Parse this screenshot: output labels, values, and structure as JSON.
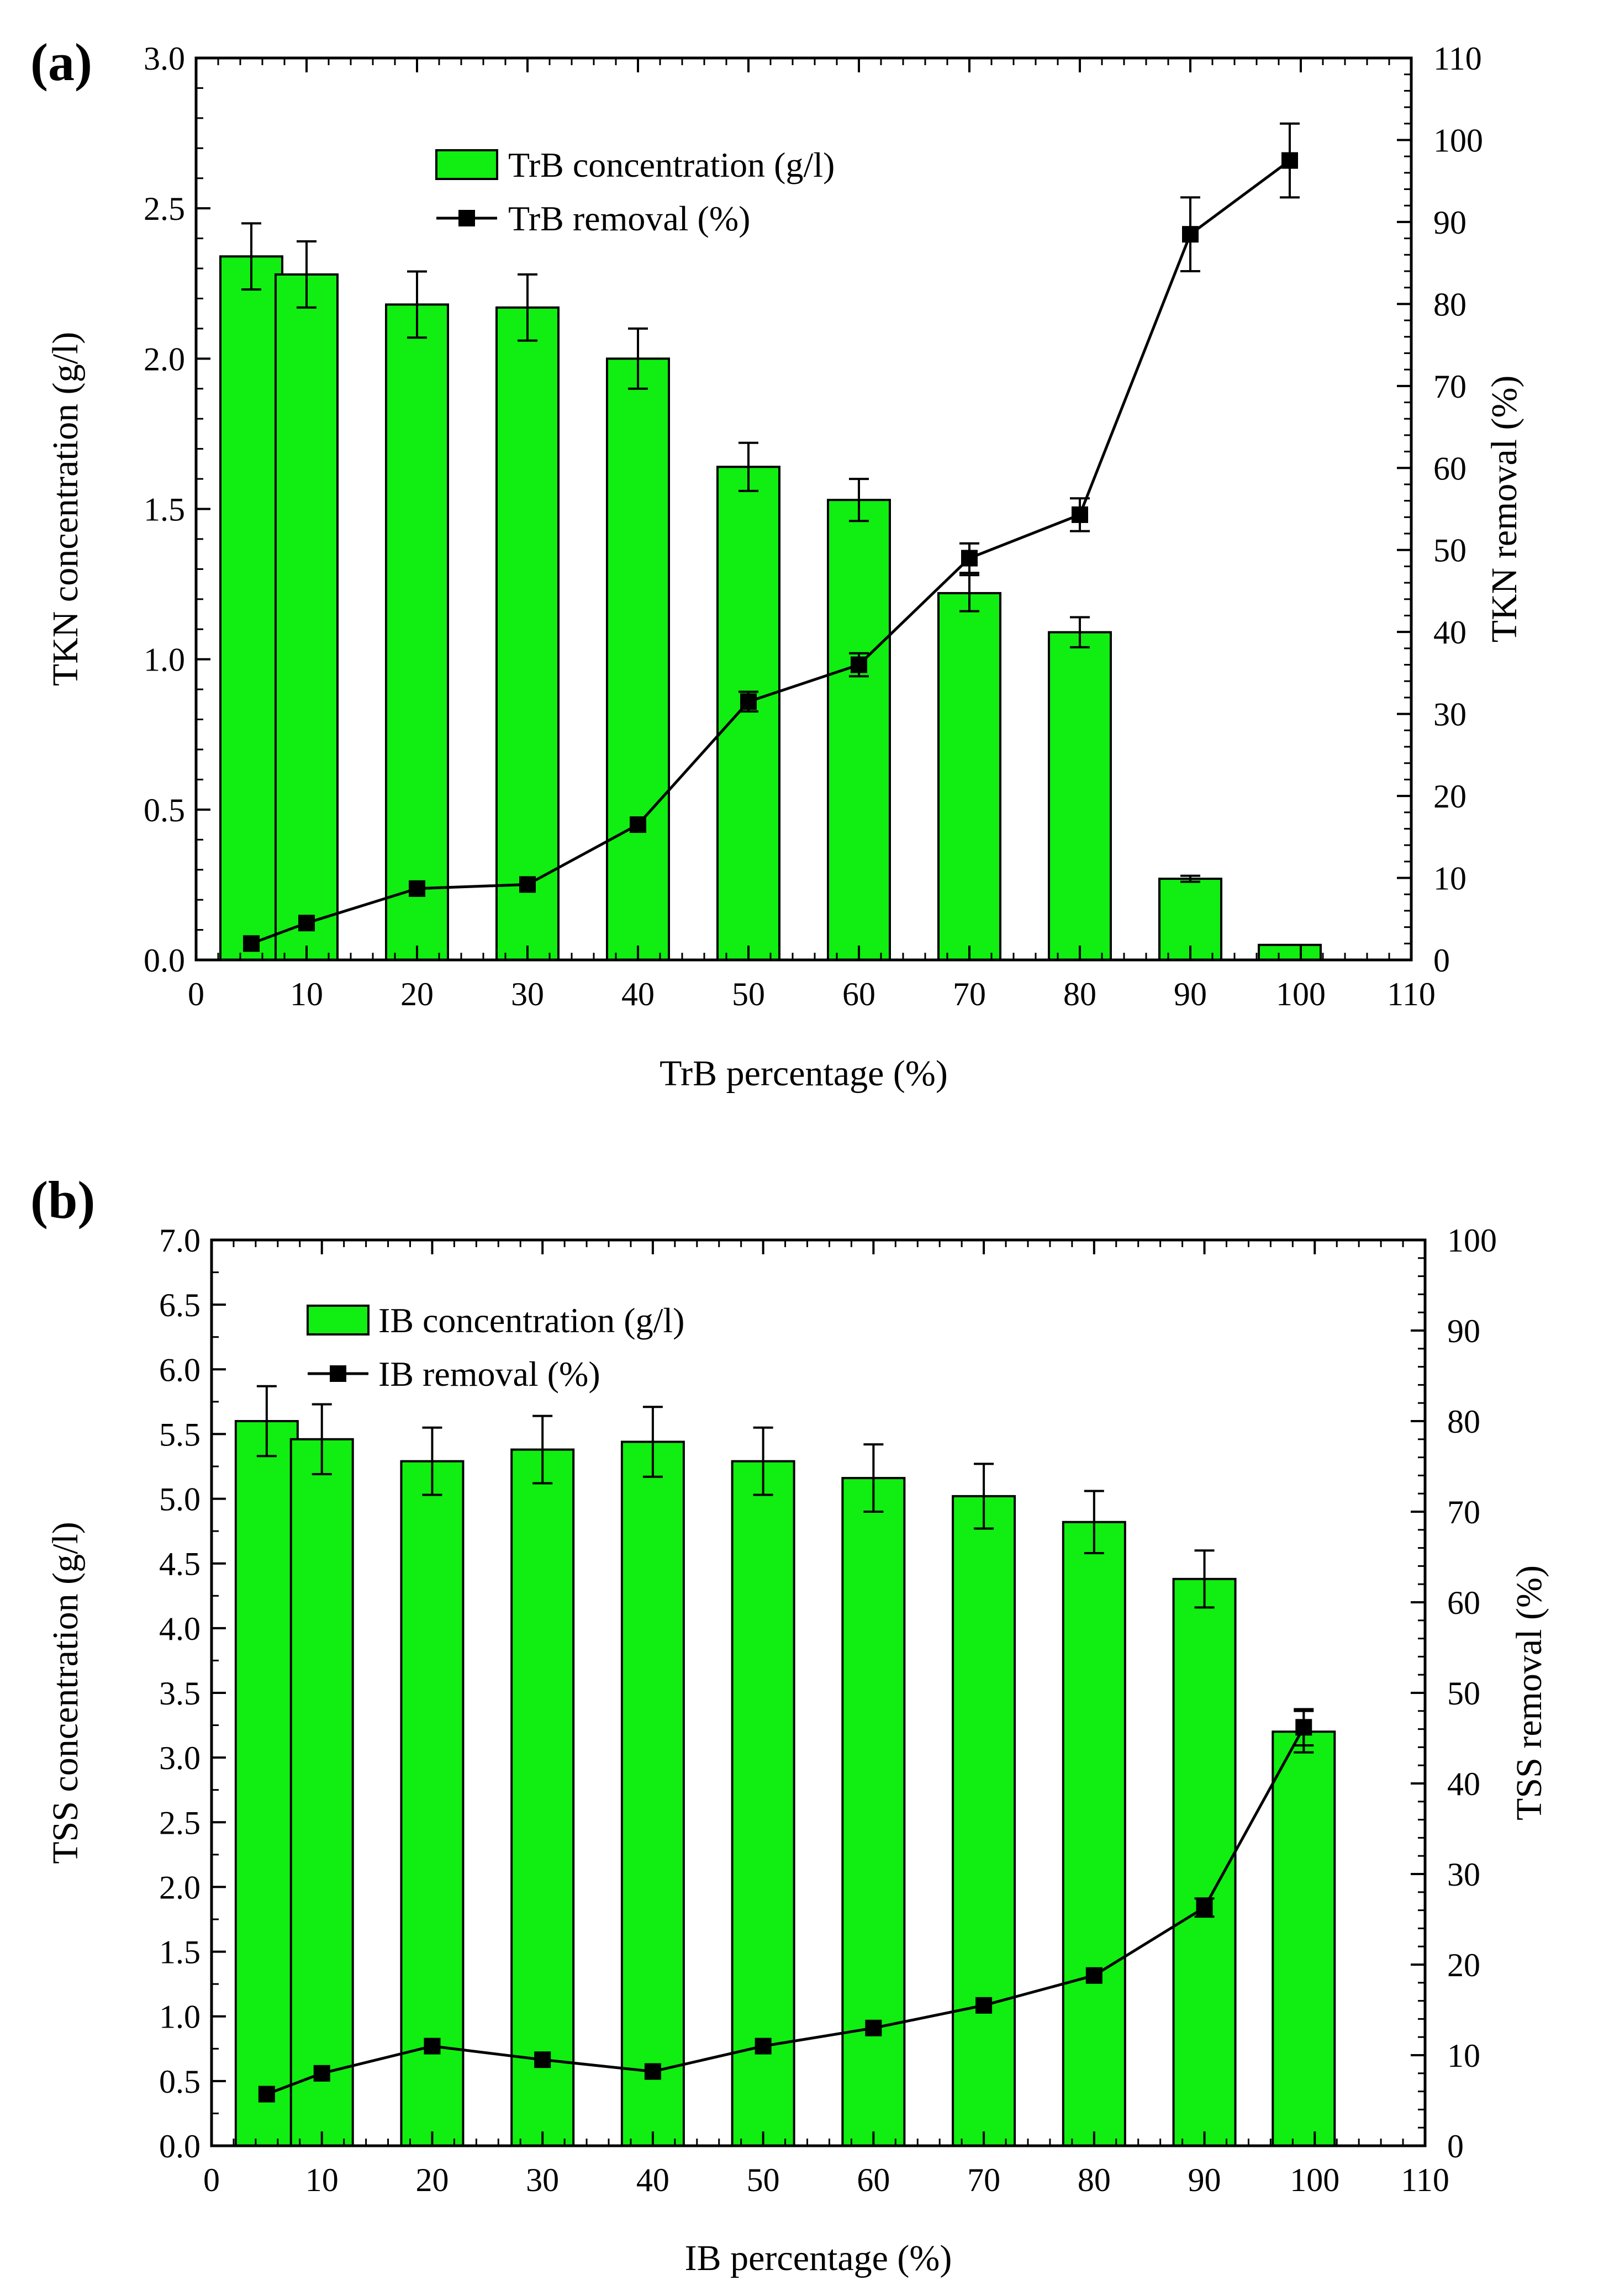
{
  "colors": {
    "bar_fill": "#11ee11",
    "bar_stroke": "#000000",
    "line": "#000000",
    "marker": "#000000"
  },
  "chart_data": [
    {
      "panel_label": "(a)",
      "type": "bar+line",
      "xlabel": "TrB percentage (%)",
      "ylabel": "TKN concentration (g/l)",
      "y2label": "TKN removal (%)",
      "xlim": [
        0,
        110
      ],
      "ylim": [
        0,
        3.0
      ],
      "y2lim": [
        0,
        110
      ],
      "x_ticks": [
        "0",
        "10",
        "20",
        "30",
        "40",
        "50",
        "60",
        "70",
        "80",
        "90",
        "100",
        "110"
      ],
      "y_ticks": [
        "0.0",
        "0.5",
        "1.0",
        "1.5",
        "2.0",
        "2.5",
        "3.0"
      ],
      "y2_ticks": [
        "0",
        "10",
        "20",
        "30",
        "40",
        "50",
        "60",
        "70",
        "80",
        "90",
        "100",
        "110"
      ],
      "legend": {
        "position": "top-center",
        "bar_label": "TrB concentration (g/l)",
        "line_label": "TrB removal (%)"
      },
      "series": [
        {
          "name": "TrB concentration (g/l)",
          "kind": "bar",
          "axis": "left",
          "x": [
            5,
            10,
            20,
            30,
            40,
            50,
            60,
            70,
            80,
            90,
            99
          ],
          "values": [
            2.34,
            2.28,
            2.18,
            2.17,
            2.0,
            1.64,
            1.53,
            1.22,
            1.09,
            0.27,
            0.05
          ],
          "errors": [
            0.11,
            0.11,
            0.11,
            0.11,
            0.1,
            0.08,
            0.07,
            0.06,
            0.05,
            0.01,
            0.0
          ]
        },
        {
          "name": "TrB removal (%)",
          "kind": "line",
          "axis": "right",
          "x": [
            5,
            10,
            20,
            30,
            40,
            50,
            60,
            70,
            80,
            90,
            99
          ],
          "values": [
            2.0,
            4.5,
            8.7,
            9.2,
            16.5,
            31.5,
            36.0,
            49.0,
            54.3,
            88.5,
            97.5
          ],
          "errors": [
            0,
            0,
            0,
            0,
            0,
            1.2,
            1.4,
            1.8,
            2.0,
            4.5,
            4.5
          ]
        }
      ]
    },
    {
      "panel_label": "(b)",
      "type": "bar+line",
      "xlabel": "IB percentage (%)",
      "ylabel": "TSS concentration (g/l)",
      "y2label": "TSS removal (%)",
      "xlim": [
        0,
        110
      ],
      "ylim": [
        0,
        7.0
      ],
      "y2lim": [
        0,
        100
      ],
      "x_ticks": [
        "0",
        "10",
        "20",
        "30",
        "40",
        "50",
        "60",
        "70",
        "80",
        "90",
        "100",
        "110"
      ],
      "y_ticks": [
        "0.0",
        "0.5",
        "1.0",
        "1.5",
        "2.0",
        "2.5",
        "3.0",
        "3.5",
        "4.0",
        "4.5",
        "5.0",
        "5.5",
        "6.0",
        "6.5",
        "7.0"
      ],
      "y2_ticks": [
        "0",
        "10",
        "20",
        "30",
        "40",
        "50",
        "60",
        "70",
        "80",
        "90",
        "100"
      ],
      "legend": {
        "position": "top-left",
        "bar_label": "IB concentration (g/l)",
        "line_label": "IB removal (%)"
      },
      "series": [
        {
          "name": "IB concentration (g/l)",
          "kind": "bar",
          "axis": "left",
          "x": [
            5,
            10,
            20,
            30,
            40,
            50,
            60,
            70,
            80,
            90,
            99
          ],
          "values": [
            5.6,
            5.46,
            5.29,
            5.38,
            5.44,
            5.29,
            5.16,
            5.02,
            4.82,
            4.38,
            3.2
          ],
          "errors": [
            0.27,
            0.27,
            0.26,
            0.26,
            0.27,
            0.26,
            0.26,
            0.25,
            0.24,
            0.22,
            0.16
          ]
        },
        {
          "name": "IB removal (%)",
          "kind": "line",
          "axis": "right",
          "x": [
            5,
            10,
            20,
            30,
            40,
            50,
            60,
            70,
            80,
            90,
            99
          ],
          "values": [
            5.7,
            8.0,
            11.0,
            9.5,
            8.2,
            11.0,
            13.0,
            15.5,
            18.8,
            26.3,
            46.2
          ],
          "errors": [
            0,
            0,
            0,
            0,
            0,
            0,
            0,
            0,
            0,
            1.0,
            2.0
          ]
        }
      ]
    }
  ]
}
